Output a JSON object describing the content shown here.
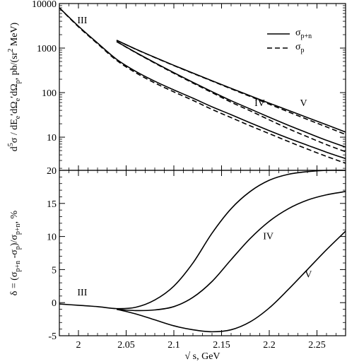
{
  "chart_data": [
    {
      "id": "top",
      "type": "line",
      "ylabel_parts": {
        "num": "d",
        "sup5": "5",
        "sigma": "σ / dE",
        "sub_e": "e",
        "mid1": "′dΩ",
        "sub_e2": "e",
        "mid2": "′dΩ",
        "sub_p": "p",
        "unit": ", pb/(sr",
        "sup2": "2",
        "unit_end": " MeV)"
      },
      "yscale": "log",
      "xlim": [
        1.98,
        2.28
      ],
      "ylim": [
        1.8,
        10000
      ],
      "yticks": [
        {
          "v": 10,
          "label": "10"
        },
        {
          "v": 100,
          "label": "100"
        },
        {
          "v": 1000,
          "label": "1000"
        },
        {
          "v": 10000,
          "label": "10000"
        }
      ],
      "legend": {
        "position": "top-right",
        "entries": [
          {
            "name": "σ",
            "sub": "p+n",
            "style": "solid"
          },
          {
            "name": "σ",
            "sub": "p",
            "style": "dashed"
          }
        ]
      },
      "annotations": [
        {
          "text": "III",
          "x": 2.004,
          "y": 3600
        },
        {
          "text": "IV",
          "x": 2.19,
          "y": 50
        },
        {
          "text": "V",
          "x": 2.236,
          "y": 50
        }
      ],
      "series": [
        {
          "group": "III",
          "style": "solid",
          "x": [
            1.98,
            2.0,
            2.02,
            2.04,
            2.06,
            2.08,
            2.1,
            2.12,
            2.14,
            2.16,
            2.18,
            2.2,
            2.22,
            2.24,
            2.26,
            2.28
          ],
          "y": [
            8000,
            3100,
            1300,
            560,
            300,
            180,
            115,
            75,
            48,
            32,
            21,
            14,
            9.5,
            6.6,
            4.6,
            3.3
          ]
        },
        {
          "group": "III",
          "style": "dashed",
          "x": [
            1.98,
            2.0,
            2.02,
            2.04,
            2.06,
            2.08,
            2.1,
            2.12,
            2.14,
            2.16,
            2.18,
            2.2,
            2.22,
            2.24,
            2.26,
            2.28
          ],
          "y": [
            8000,
            3000,
            1250,
            530,
            280,
            165,
            104,
            67,
            42,
            27.5,
            18,
            12,
            8,
            5.4,
            3.7,
            2.6
          ]
        },
        {
          "group": "IV",
          "style": "solid",
          "x": [
            2.04,
            2.06,
            2.08,
            2.1,
            2.12,
            2.14,
            2.16,
            2.18,
            2.2,
            2.22,
            2.24,
            2.26,
            2.28
          ],
          "y": [
            1400,
            800,
            470,
            280,
            170,
            105,
            66,
            43,
            28,
            18.5,
            12.5,
            8.5,
            6
          ]
        },
        {
          "group": "IV",
          "style": "dashed",
          "x": [
            2.04,
            2.06,
            2.08,
            2.1,
            2.12,
            2.14,
            2.16,
            2.18,
            2.2,
            2.22,
            2.24,
            2.26,
            2.28
          ],
          "y": [
            1400,
            790,
            460,
            272,
            164,
            100,
            61,
            39,
            24.5,
            15.5,
            10.2,
            6.8,
            4.7
          ]
        },
        {
          "group": "V",
          "style": "solid",
          "x": [
            2.04,
            2.06,
            2.08,
            2.1,
            2.12,
            2.14,
            2.16,
            2.18,
            2.2,
            2.22,
            2.24,
            2.26,
            2.28
          ],
          "y": [
            1500,
            950,
            620,
            410,
            275,
            185,
            125,
            85,
            58,
            40,
            27.5,
            19,
            13
          ]
        },
        {
          "group": "V",
          "style": "dashed",
          "x": [
            2.04,
            2.06,
            2.08,
            2.1,
            2.12,
            2.14,
            2.16,
            2.18,
            2.2,
            2.22,
            2.24,
            2.26,
            2.28
          ],
          "y": [
            1500,
            945,
            615,
            405,
            270,
            182,
            122,
            82,
            55,
            37,
            25,
            17,
            11.5
          ]
        }
      ]
    },
    {
      "id": "bottom",
      "type": "line",
      "ylabel_parts": {
        "a": "δ = (σ",
        "s1": "p+n",
        "b": " -σ",
        "s2": "p",
        "c": ")/σ",
        "s3": "p+n",
        "d": ", %"
      },
      "xlabel": "√ s, GeV",
      "xlim": [
        1.98,
        2.28
      ],
      "ylim": [
        -5,
        20
      ],
      "xticks": [
        {
          "v": 2.0,
          "label": "2"
        },
        {
          "v": 2.05,
          "label": "2.05"
        },
        {
          "v": 2.1,
          "label": "2.1"
        },
        {
          "v": 2.15,
          "label": "2.15"
        },
        {
          "v": 2.2,
          "label": "2.2"
        },
        {
          "v": 2.25,
          "label": "2.25"
        }
      ],
      "yticks": [
        {
          "v": -5,
          "label": "-5"
        },
        {
          "v": 0,
          "label": "0"
        },
        {
          "v": 5,
          "label": "5"
        },
        {
          "v": 10,
          "label": "10"
        },
        {
          "v": 15,
          "label": "15"
        },
        {
          "v": 20,
          "label": "20"
        }
      ],
      "annotations": [
        {
          "text": "III",
          "x": 2.004,
          "y": 1.1
        },
        {
          "text": "IV",
          "x": 2.199,
          "y": 9.6
        },
        {
          "text": "V",
          "x": 2.241,
          "y": 3.8
        }
      ],
      "series": [
        {
          "group": "III",
          "style": "solid",
          "x": [
            1.98,
            2.0,
            2.02,
            2.04,
            2.06,
            2.08,
            2.1,
            2.12,
            2.14,
            2.16,
            2.18,
            2.2,
            2.22,
            2.24,
            2.26,
            2.28
          ],
          "y": [
            -0.2,
            -0.4,
            -0.6,
            -0.9,
            -0.7,
            0.4,
            2.5,
            6.0,
            10.5,
            14.2,
            16.8,
            18.5,
            19.4,
            19.8,
            20.0,
            20.0
          ]
        },
        {
          "group": "IV",
          "style": "solid",
          "x": [
            2.04,
            2.06,
            2.08,
            2.1,
            2.12,
            2.14,
            2.16,
            2.18,
            2.2,
            2.22,
            2.24,
            2.26,
            2.28
          ],
          "y": [
            -1.0,
            -1.2,
            -1.1,
            -0.6,
            0.8,
            3.2,
            6.5,
            9.7,
            12.3,
            14.2,
            15.5,
            16.3,
            16.8
          ]
        },
        {
          "group": "V",
          "style": "solid",
          "x": [
            2.04,
            2.06,
            2.08,
            2.1,
            2.12,
            2.14,
            2.16,
            2.18,
            2.2,
            2.22,
            2.24,
            2.26,
            2.28
          ],
          "y": [
            -1.0,
            -1.7,
            -2.6,
            -3.5,
            -4.1,
            -4.4,
            -4.1,
            -2.9,
            -0.8,
            2.0,
            5.0,
            8.0,
            10.8
          ]
        }
      ]
    }
  ]
}
